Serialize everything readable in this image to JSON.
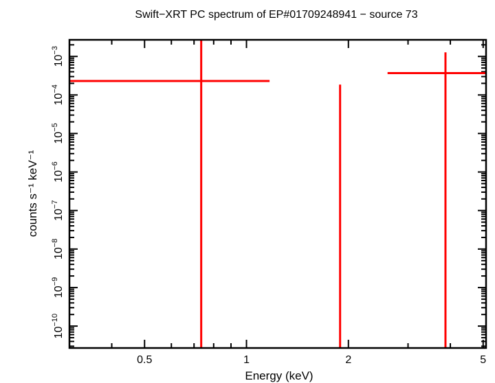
{
  "chart_data": {
    "type": "scatter",
    "title": "Swift−XRT PC spectrum of EP#01709248941 − source 73",
    "xlabel": "Energy (keV)",
    "ylabel": "counts s⁻¹ keV⁻¹",
    "xscale": "log",
    "yscale": "log",
    "xlim": [
      0.3,
      5.1
    ],
    "ylim": [
      2.7e-11,
      0.0027
    ],
    "x_ticks": [
      {
        "value": 0.5,
        "label": "0.5"
      },
      {
        "value": 1,
        "label": "1"
      },
      {
        "value": 2,
        "label": "2"
      },
      {
        "value": 5,
        "label": "5"
      }
    ],
    "y_ticks": [
      {
        "value": 0.001,
        "base": "10",
        "exp": "−3"
      },
      {
        "value": 0.0001,
        "base": "10",
        "exp": "−4"
      },
      {
        "value": 1e-05,
        "base": "10",
        "exp": "−5"
      },
      {
        "value": 1e-06,
        "base": "10",
        "exp": "−6"
      },
      {
        "value": 1e-07,
        "base": "10",
        "exp": "−7"
      },
      {
        "value": 1e-08,
        "base": "10",
        "exp": "−8"
      },
      {
        "value": 1e-09,
        "base": "10",
        "exp": "−9"
      },
      {
        "value": 1e-10,
        "base": "10",
        "exp": "−10"
      }
    ],
    "grid": false,
    "color": "#ff0000",
    "points": [
      {
        "x": 0.735,
        "x_low": 0.3,
        "x_high": 1.17,
        "y": 0.00023,
        "y_low": null,
        "y_high": null
      },
      {
        "x": 1.89,
        "x_low": 1.89,
        "x_high": 1.89,
        "y": null,
        "y_low": null,
        "y_high": 0.000186
      },
      {
        "x": 3.87,
        "x_low": 2.61,
        "x_high": 5.1,
        "y": 0.00037,
        "y_low": null,
        "y_high": 0.00128
      }
    ]
  }
}
